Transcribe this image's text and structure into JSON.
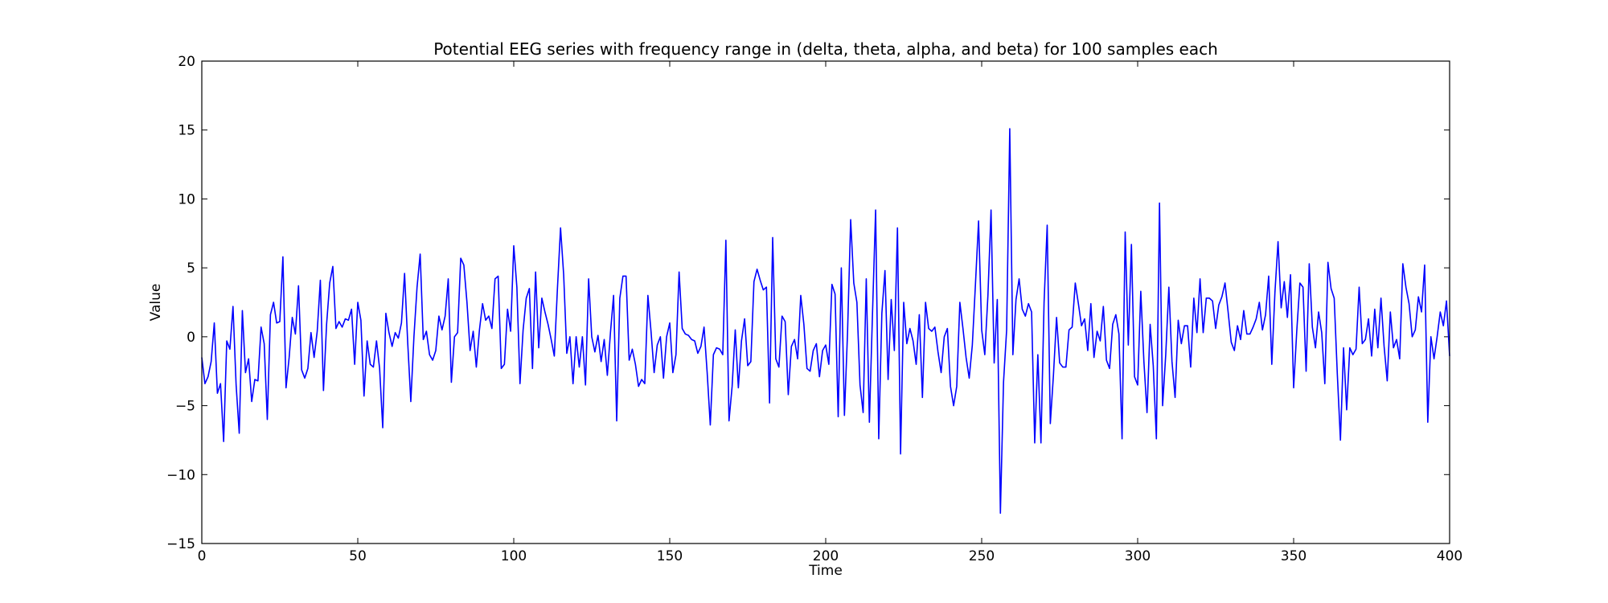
{
  "chart_data": {
    "type": "line",
    "title": "Potential EEG series with frequency range in (delta, theta, alpha, and beta) for 100 samples each",
    "xlabel": "Time",
    "ylabel": "Value",
    "xlim": [
      0,
      400
    ],
    "ylim": [
      -15,
      20
    ],
    "xticks": [
      0,
      50,
      100,
      150,
      200,
      250,
      300,
      350,
      400
    ],
    "yticks": [
      -15,
      -10,
      -5,
      0,
      5,
      10,
      15,
      20
    ],
    "xtick_labels": [
      "0",
      "50",
      "100",
      "150",
      "200",
      "250",
      "300",
      "350",
      "400"
    ],
    "ytick_labels": [
      "−15",
      "−10",
      "−5",
      "0",
      "5",
      "10",
      "15",
      "20"
    ],
    "grid": false,
    "line_color": "#0000ff",
    "series": [
      {
        "values": [
          -1.5,
          -3.4,
          -2.9,
          -1.8,
          1.0,
          -4.1,
          -3.4,
          -7.6,
          -0.3,
          -0.9,
          2.2,
          -3.5,
          -7.0,
          1.9,
          -2.6,
          -1.6,
          -4.7,
          -3.1,
          -3.2,
          0.7,
          -0.5,
          -6.0,
          1.6,
          2.5,
          1.0,
          1.1,
          5.8,
          -3.7,
          -1.5,
          1.4,
          0.2,
          3.7,
          -2.4,
          -3.0,
          -2.3,
          0.3,
          -1.5,
          0.4,
          4.1,
          -3.9,
          0.9,
          3.9,
          5.1,
          0.6,
          1.1,
          0.7,
          1.3,
          1.2,
          2.0,
          -2.0,
          2.5,
          1.2,
          -4.3,
          -0.3,
          -2.0,
          -2.2,
          -0.3,
          -2.3,
          -6.6,
          1.7,
          0.3,
          -0.7,
          0.3,
          -0.1,
          1.0,
          4.6,
          -0.4,
          -4.7,
          0.0,
          3.6,
          6.0,
          -0.2,
          0.4,
          -1.3,
          -1.7,
          -1.0,
          1.5,
          0.5,
          1.5,
          4.2,
          -3.3,
          0.0,
          0.3,
          5.7,
          5.2,
          2.5,
          -1.0,
          0.4,
          -2.2,
          0.5,
          2.4,
          1.2,
          1.5,
          0.6,
          4.2,
          4.4,
          -2.3,
          -2.0,
          2.0,
          0.4,
          6.6,
          3.6,
          -3.4,
          0.5,
          2.8,
          3.5,
          -2.3,
          4.7,
          -0.8,
          2.8,
          1.8,
          0.9,
          -0.2,
          -1.4,
          3.5,
          7.9,
          4.5,
          -1.2,
          0.0,
          -3.4,
          0.0,
          -2.2,
          0.0,
          -3.5,
          4.2,
          0.0,
          -1.1,
          0.1,
          -1.8,
          -0.2,
          -2.8,
          0.3,
          3.0,
          -6.1,
          2.8,
          4.4,
          4.4,
          -1.7,
          -0.9,
          -2.0,
          -3.6,
          -3.1,
          -3.4,
          3.0,
          0.4,
          -2.6,
          -0.6,
          0.0,
          -3.0,
          0.0,
          1.0,
          -2.6,
          -1.3,
          4.7,
          0.6,
          0.2,
          0.1,
          -0.2,
          -0.3,
          -1.2,
          -0.7,
          0.7,
          -2.6,
          -6.4,
          -1.3,
          -0.8,
          -0.9,
          -1.3,
          7.0,
          -6.1,
          -3.6,
          0.5,
          -3.7,
          -0.3,
          1.3,
          -2.1,
          -1.8,
          4.0,
          4.9,
          4.1,
          3.4,
          3.6,
          -4.8,
          7.2,
          -1.6,
          -2.2,
          1.5,
          1.1,
          -4.2,
          -0.7,
          -0.2,
          -1.6,
          3.0,
          0.9,
          -2.3,
          -2.5,
          -1.0,
          -0.5,
          -2.9,
          -1.0,
          -0.6,
          -2.0,
          3.8,
          3.1,
          -5.8,
          5.0,
          -5.7,
          0.3,
          8.5,
          3.9,
          2.5,
          -3.5,
          -5.5,
          4.2,
          -6.2,
          1.7,
          9.2,
          -7.4,
          1.7,
          4.8,
          -3.1,
          2.7,
          -1.0,
          7.9,
          -8.5,
          2.5,
          -0.5,
          0.6,
          -0.3,
          -2.0,
          1.6,
          -4.4,
          2.5,
          0.6,
          0.4,
          0.7,
          -1.1,
          -2.6,
          0.0,
          0.6,
          -3.6,
          -5.0,
          -3.6,
          2.5,
          0.6,
          -1.5,
          -3.0,
          -0.6,
          3.8,
          8.4,
          0.5,
          -1.3,
          3.0,
          9.2,
          -1.9,
          2.7,
          -12.8,
          -3.3,
          0.5,
          15.1,
          -1.3,
          2.7,
          4.2,
          2.0,
          1.5,
          2.4,
          1.8,
          -7.7,
          -1.3,
          -7.7,
          2.5,
          8.1,
          -6.3,
          -2.8,
          1.4,
          -1.9,
          -2.2,
          -2.2,
          0.5,
          0.7,
          3.9,
          2.4,
          0.8,
          1.3,
          -1.0,
          2.4,
          -1.5,
          0.4,
          -0.3,
          2.2,
          -1.7,
          -2.3,
          0.9,
          1.6,
          0.2,
          -7.4,
          7.6,
          -0.6,
          6.7,
          -2.9,
          -3.5,
          3.3,
          -1.8,
          -5.5,
          0.9,
          -2.1,
          -7.4,
          9.7,
          -5.0,
          -1.3,
          3.6,
          -1.8,
          -4.4,
          1.2,
          -0.5,
          0.8,
          0.8,
          -2.2,
          2.8,
          0.3,
          4.2,
          0.3,
          2.8,
          2.8,
          2.6,
          0.6,
          2.3,
          2.9,
          3.9,
          1.8,
          -0.4,
          -1.0,
          0.8,
          -0.2,
          1.9,
          0.2,
          0.2,
          0.7,
          1.3,
          2.5,
          0.5,
          1.6,
          4.4,
          -2.0,
          3.2,
          6.9,
          2.1,
          4.0,
          1.4,
          4.5,
          -3.7,
          0.4,
          3.9,
          3.6,
          -2.5,
          5.3,
          0.7,
          -0.8,
          1.8,
          0.3,
          -3.4,
          5.4,
          3.5,
          2.8,
          -2.7,
          -7.5,
          -0.8,
          -5.3,
          -0.8,
          -1.3,
          -0.9,
          3.6,
          -0.5,
          -0.2,
          1.3,
          -1.4,
          2.0,
          -0.8,
          2.8,
          -0.7,
          -3.2,
          1.8,
          -0.8,
          -0.2,
          -1.6,
          5.3,
          3.6,
          2.4,
          0.0,
          0.5,
          2.9,
          1.8,
          5.2,
          -6.2,
          0.0,
          -1.6,
          0.0,
          1.8,
          0.8,
          2.6,
          -1.4
        ]
      }
    ]
  }
}
